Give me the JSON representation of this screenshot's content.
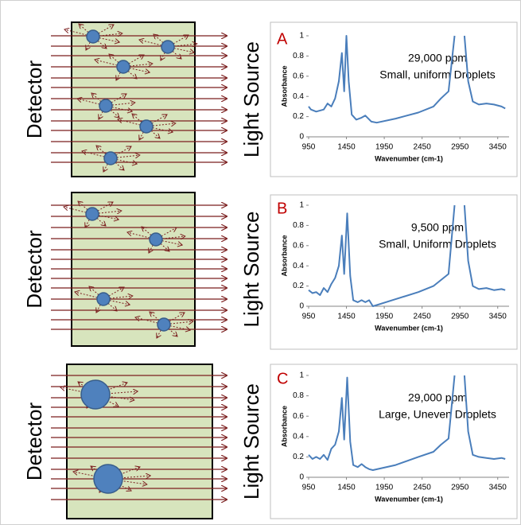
{
  "diagrams": [
    {
      "left_label": "Detector",
      "right_label": "Light Source"
    },
    {
      "left_label": "Detector",
      "right_label": "Light Source"
    },
    {
      "left_label": "Detector",
      "right_label": "Light Source"
    }
  ],
  "chart_data": [
    {
      "type": "line",
      "panel_label": "A",
      "annotation": [
        "29,000 ppm",
        "Small, uniform Droplets"
      ],
      "x_label": "Wavenumber (cm-1)",
      "y_label": "Absorbance",
      "color": "#4a7ebb",
      "x": [
        950,
        980,
        1050,
        1150,
        1200,
        1250,
        1300,
        1350,
        1390,
        1420,
        1450,
        1480,
        1520,
        1580,
        1650,
        1700,
        1780,
        1850,
        2100,
        2400,
        2600,
        2700,
        2800,
        2880,
        2950,
        3010,
        3060,
        3120,
        3200,
        3300,
        3400,
        3500,
        3550
      ],
      "values": [
        0.3,
        0.27,
        0.25,
        0.27,
        0.33,
        0.3,
        0.38,
        0.55,
        0.83,
        0.45,
        1.0,
        0.55,
        0.22,
        0.17,
        0.19,
        0.21,
        0.15,
        0.14,
        0.18,
        0.24,
        0.3,
        0.38,
        0.45,
        1.0,
        null,
        1.0,
        0.55,
        0.35,
        0.32,
        0.33,
        0.32,
        0.3,
        0.28
      ],
      "xlim": [
        950,
        3600
      ],
      "ylim": [
        0,
        1
      ],
      "xticks": [
        950,
        1450,
        1950,
        2450,
        2950,
        3450
      ],
      "yticks": [
        0,
        0.2,
        0.4,
        0.6,
        0.8,
        1
      ]
    },
    {
      "type": "line",
      "panel_label": "B",
      "annotation": [
        "9,500 ppm",
        "Small, Uniform Droplets"
      ],
      "x_label": "Wavenumber (cm-1)",
      "y_label": "Absorbance",
      "color": "#4a7ebb",
      "x": [
        950,
        1000,
        1050,
        1100,
        1150,
        1200,
        1250,
        1300,
        1350,
        1390,
        1420,
        1460,
        1500,
        1540,
        1600,
        1650,
        1700,
        1750,
        1800,
        2100,
        2400,
        2600,
        2700,
        2800,
        2880,
        2950,
        3010,
        3060,
        3120,
        3200,
        3300,
        3400,
        3500,
        3550
      ],
      "values": [
        0.16,
        0.13,
        0.14,
        0.11,
        0.18,
        0.14,
        0.22,
        0.28,
        0.4,
        0.7,
        0.32,
        0.92,
        0.3,
        0.06,
        0.04,
        0.06,
        0.04,
        0.06,
        0.0,
        0.07,
        0.14,
        0.2,
        0.26,
        0.32,
        1.0,
        null,
        1.0,
        0.45,
        0.2,
        0.17,
        0.18,
        0.16,
        0.17,
        0.16
      ],
      "xlim": [
        950,
        3600
      ],
      "ylim": [
        0,
        1
      ],
      "xticks": [
        950,
        1450,
        1950,
        2450,
        2950,
        3450
      ],
      "yticks": [
        0,
        0.2,
        0.4,
        0.6,
        0.8,
        1
      ]
    },
    {
      "type": "line",
      "panel_label": "C",
      "annotation": [
        "29,000 ppm",
        "Large, Uneven Droplets"
      ],
      "x_label": "Wavenumber (cm-1)",
      "y_label": "Absorbance",
      "color": "#4a7ebb",
      "x": [
        950,
        1000,
        1050,
        1100,
        1150,
        1200,
        1250,
        1300,
        1350,
        1390,
        1420,
        1460,
        1500,
        1540,
        1600,
        1650,
        1700,
        1750,
        1800,
        2100,
        2400,
        2600,
        2700,
        2800,
        2880,
        2950,
        3010,
        3060,
        3120,
        3200,
        3300,
        3400,
        3500,
        3550
      ],
      "values": [
        0.22,
        0.18,
        0.2,
        0.18,
        0.22,
        0.17,
        0.28,
        0.32,
        0.45,
        0.78,
        0.37,
        0.98,
        0.35,
        0.12,
        0.1,
        0.13,
        0.1,
        0.08,
        0.07,
        0.12,
        0.2,
        0.25,
        0.32,
        0.38,
        1.0,
        null,
        1.0,
        0.45,
        0.22,
        0.2,
        0.19,
        0.18,
        0.19,
        0.18
      ],
      "xlim": [
        950,
        3600
      ],
      "ylim": [
        0,
        1
      ],
      "xticks": [
        950,
        1450,
        1950,
        2450,
        2950,
        3450
      ],
      "yticks": [
        0,
        0.2,
        0.4,
        0.6,
        0.8,
        1
      ]
    }
  ]
}
